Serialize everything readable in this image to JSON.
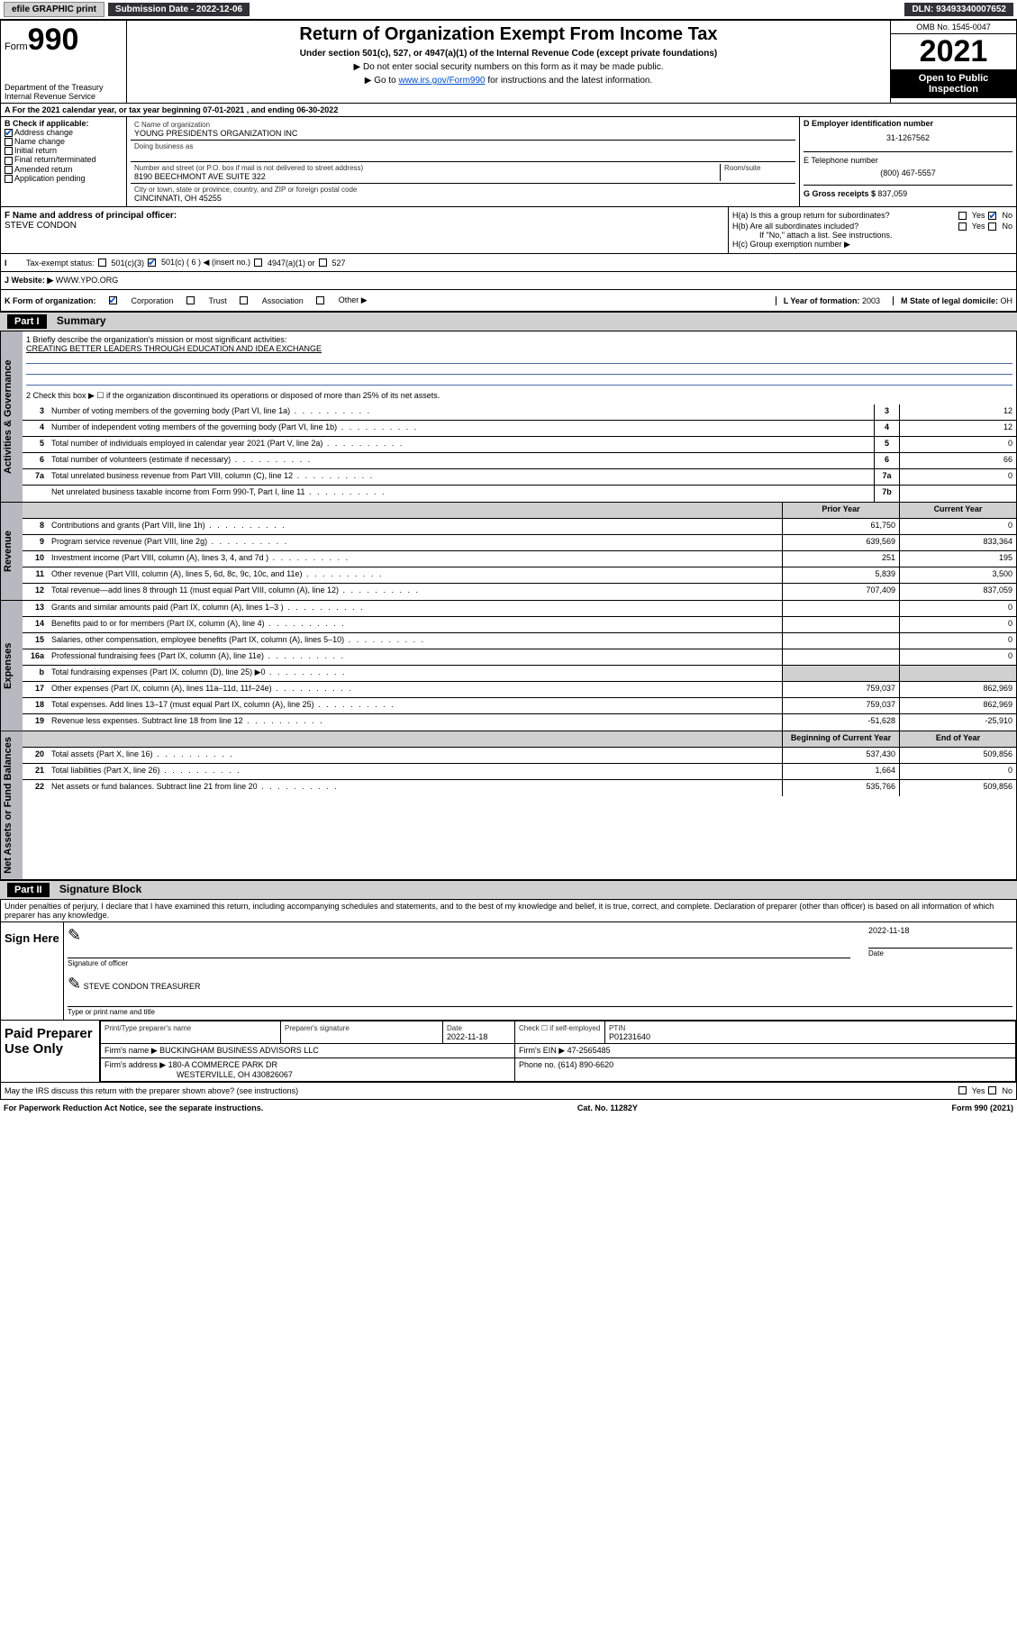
{
  "topbar": {
    "efile": "efile GRAPHIC print",
    "sub_label": "Submission Date - ",
    "sub_date": "2022-12-06",
    "dln_label": "DLN: ",
    "dln": "93493340007652"
  },
  "head": {
    "form_word": "Form",
    "form_no": "990",
    "dept": "Department of the Treasury\nInternal Revenue Service",
    "title": "Return of Organization Exempt From Income Tax",
    "sub": "Under section 501(c), 527, or 4947(a)(1) of the Internal Revenue Code (except private foundations)",
    "note1": "▶ Do not enter social security numbers on this form as it may be made public.",
    "note2_pre": "▶ Go to ",
    "note2_link": "www.irs.gov/Form990",
    "note2_post": " for instructions and the latest information.",
    "omb": "OMB No. 1545-0047",
    "year": "2021",
    "open": "Open to Public Inspection"
  },
  "lineA": "A For the 2021 calendar year, or tax year beginning 07-01-2021   , and ending 06-30-2022",
  "boxB": {
    "label": "B Check if applicable:",
    "items": [
      {
        "label": "Address change",
        "checked": true
      },
      {
        "label": "Name change",
        "checked": false
      },
      {
        "label": "Initial return",
        "checked": false
      },
      {
        "label": "Final return/terminated",
        "checked": false
      },
      {
        "label": "Amended return",
        "checked": false
      },
      {
        "label": "Application pending",
        "checked": false
      }
    ]
  },
  "boxC": {
    "name_lbl": "C Name of organization",
    "name": "YOUNG PRESIDENTS ORGANIZATION INC",
    "dba_lbl": "Doing business as",
    "addr_lbl": "Number and street (or P.O. box if mail is not delivered to street address)",
    "room_lbl": "Room/suite",
    "addr": "8190 BEECHMONT AVE SUITE 322",
    "city_lbl": "City or town, state or province, country, and ZIP or foreign postal code",
    "city": "CINCINNATI, OH  45255"
  },
  "boxD": {
    "lbl": "D Employer identification number",
    "val": "31-1267562"
  },
  "boxE": {
    "lbl": "E Telephone number",
    "val": "(800) 467-5557"
  },
  "boxG": {
    "lbl": "G Gross receipts $ ",
    "val": "837,059"
  },
  "boxF": {
    "lbl": "F Name and address of principal officer:",
    "name": "STEVE CONDON"
  },
  "boxH": {
    "ha": "H(a)  Is this a group return for subordinates?",
    "hb": "H(b)  Are all subordinates included?",
    "hb_note": "If \"No,\" attach a list. See instructions.",
    "hc": "H(c)  Group exemption number ▶",
    "yes": "Yes",
    "no": "No"
  },
  "rowI": {
    "lbl": "Tax-exempt status:",
    "o1": "501(c)(3)",
    "o2": "501(c) ( 6 ) ◀ (insert no.)",
    "o3": "4947(a)(1) or",
    "o4": "527"
  },
  "rowJ": {
    "lbl": "Website: ▶",
    "val": "WWW.YPO.ORG"
  },
  "rowK": {
    "lbl": "K Form of organization:",
    "o1": "Corporation",
    "o2": "Trust",
    "o3": "Association",
    "o4": "Other ▶"
  },
  "rowL": {
    "lbl": "L Year of formation: ",
    "val": "2003"
  },
  "rowM": {
    "lbl": "M State of legal domicile: ",
    "val": "OH"
  },
  "part1": {
    "hdr": "Part I",
    "title": "Summary",
    "q1_lbl": "1  Briefly describe the organization's mission or most significant activities:",
    "q1_val": "CREATING BETTER LEADERS THROUGH EDUCATION AND IDEA EXCHANGE",
    "q2": "2   Check this box ▶ ☐  if the organization discontinued its operations or disposed of more than 25% of its net assets.",
    "vtabs": [
      "Activities & Governance",
      "Revenue",
      "Expenses",
      "Net Assets or Fund Balances"
    ],
    "col_prior": "Prior Year",
    "col_curr": "Current Year",
    "col_beg": "Beginning of Current Year",
    "col_end": "End of Year",
    "rows_single": [
      {
        "n": "3",
        "d": "Number of voting members of the governing body (Part VI, line 1a)",
        "box": "3",
        "v": "12"
      },
      {
        "n": "4",
        "d": "Number of independent voting members of the governing body (Part VI, line 1b)",
        "box": "4",
        "v": "12"
      },
      {
        "n": "5",
        "d": "Total number of individuals employed in calendar year 2021 (Part V, line 2a)",
        "box": "5",
        "v": "0"
      },
      {
        "n": "6",
        "d": "Total number of volunteers (estimate if necessary)",
        "box": "6",
        "v": "66"
      },
      {
        "n": "7a",
        "d": "Total unrelated business revenue from Part VIII, column (C), line 12",
        "box": "7a",
        "v": "0"
      },
      {
        "n": "",
        "d": "Net unrelated business taxable income from Form 990-T, Part I, line 11",
        "box": "7b",
        "v": ""
      }
    ],
    "rows_rev": [
      {
        "n": "8",
        "d": "Contributions and grants (Part VIII, line 1h)",
        "p": "61,750",
        "c": "0"
      },
      {
        "n": "9",
        "d": "Program service revenue (Part VIII, line 2g)",
        "p": "639,569",
        "c": "833,364"
      },
      {
        "n": "10",
        "d": "Investment income (Part VIII, column (A), lines 3, 4, and 7d )",
        "p": "251",
        "c": "195"
      },
      {
        "n": "11",
        "d": "Other revenue (Part VIII, column (A), lines 5, 6d, 8c, 9c, 10c, and 11e)",
        "p": "5,839",
        "c": "3,500"
      },
      {
        "n": "12",
        "d": "Total revenue—add lines 8 through 11 (must equal Part VIII, column (A), line 12)",
        "p": "707,409",
        "c": "837,059"
      }
    ],
    "rows_exp": [
      {
        "n": "13",
        "d": "Grants and similar amounts paid (Part IX, column (A), lines 1–3 )",
        "p": "",
        "c": "0"
      },
      {
        "n": "14",
        "d": "Benefits paid to or for members (Part IX, column (A), line 4)",
        "p": "",
        "c": "0"
      },
      {
        "n": "15",
        "d": "Salaries, other compensation, employee benefits (Part IX, column (A), lines 5–10)",
        "p": "",
        "c": "0"
      },
      {
        "n": "16a",
        "d": "Professional fundraising fees (Part IX, column (A), line 11e)",
        "p": "",
        "c": "0"
      },
      {
        "n": "b",
        "d": "Total fundraising expenses (Part IX, column (D), line 25) ▶0",
        "p": "SHADE",
        "c": "SHADE"
      },
      {
        "n": "17",
        "d": "Other expenses (Part IX, column (A), lines 11a–11d, 11f–24e)",
        "p": "759,037",
        "c": "862,969"
      },
      {
        "n": "18",
        "d": "Total expenses. Add lines 13–17 (must equal Part IX, column (A), line 25)",
        "p": "759,037",
        "c": "862,969"
      },
      {
        "n": "19",
        "d": "Revenue less expenses. Subtract line 18 from line 12",
        "p": "-51,628",
        "c": "-25,910"
      }
    ],
    "rows_net": [
      {
        "n": "20",
        "d": "Total assets (Part X, line 16)",
        "p": "537,430",
        "c": "509,856"
      },
      {
        "n": "21",
        "d": "Total liabilities (Part X, line 26)",
        "p": "1,664",
        "c": "0"
      },
      {
        "n": "22",
        "d": "Net assets or fund balances. Subtract line 21 from line 20",
        "p": "535,766",
        "c": "509,856"
      }
    ]
  },
  "part2": {
    "hdr": "Part II",
    "title": "Signature Block",
    "penalty": "Under penalties of perjury, I declare that I have examined this return, including accompanying schedules and statements, and to the best of my knowledge and belief, it is true, correct, and complete. Declaration of preparer (other than officer) is based on all information of which preparer has any knowledge.",
    "sign_here": "Sign Here",
    "sig_officer_lbl": "Signature of officer",
    "sig_date_lbl": "Date",
    "sig_date": "2022-11-18",
    "officer_name": "STEVE CONDON TREASURER",
    "officer_name_lbl": "Type or print name and title",
    "paid_lbl": "Paid Preparer Use Only",
    "prep_name_lbl": "Print/Type preparer's name",
    "prep_sig_lbl": "Preparer's signature",
    "prep_date_lbl": "Date",
    "prep_date": "2022-11-18",
    "prep_self_lbl": "Check ☐ if self-employed",
    "ptin_lbl": "PTIN",
    "ptin": "P01231640",
    "firm_name_lbl": "Firm's name    ▶ ",
    "firm_name": "BUCKINGHAM BUSINESS ADVISORS LLC",
    "firm_ein_lbl": "Firm's EIN ▶ ",
    "firm_ein": "47-2565485",
    "firm_addr_lbl": "Firm's address ▶ ",
    "firm_addr1": "180-A COMMERCE PARK DR",
    "firm_addr2": "WESTERVILLE, OH  430826067",
    "firm_phone_lbl": "Phone no. ",
    "firm_phone": "(614) 890-6620",
    "discuss": "May the IRS discuss this return with the preparer shown above? (see instructions)"
  },
  "footer": {
    "left": "For Paperwork Reduction Act Notice, see the separate instructions.",
    "mid": "Cat. No. 11282Y",
    "right": "Form 990 (2021)"
  }
}
